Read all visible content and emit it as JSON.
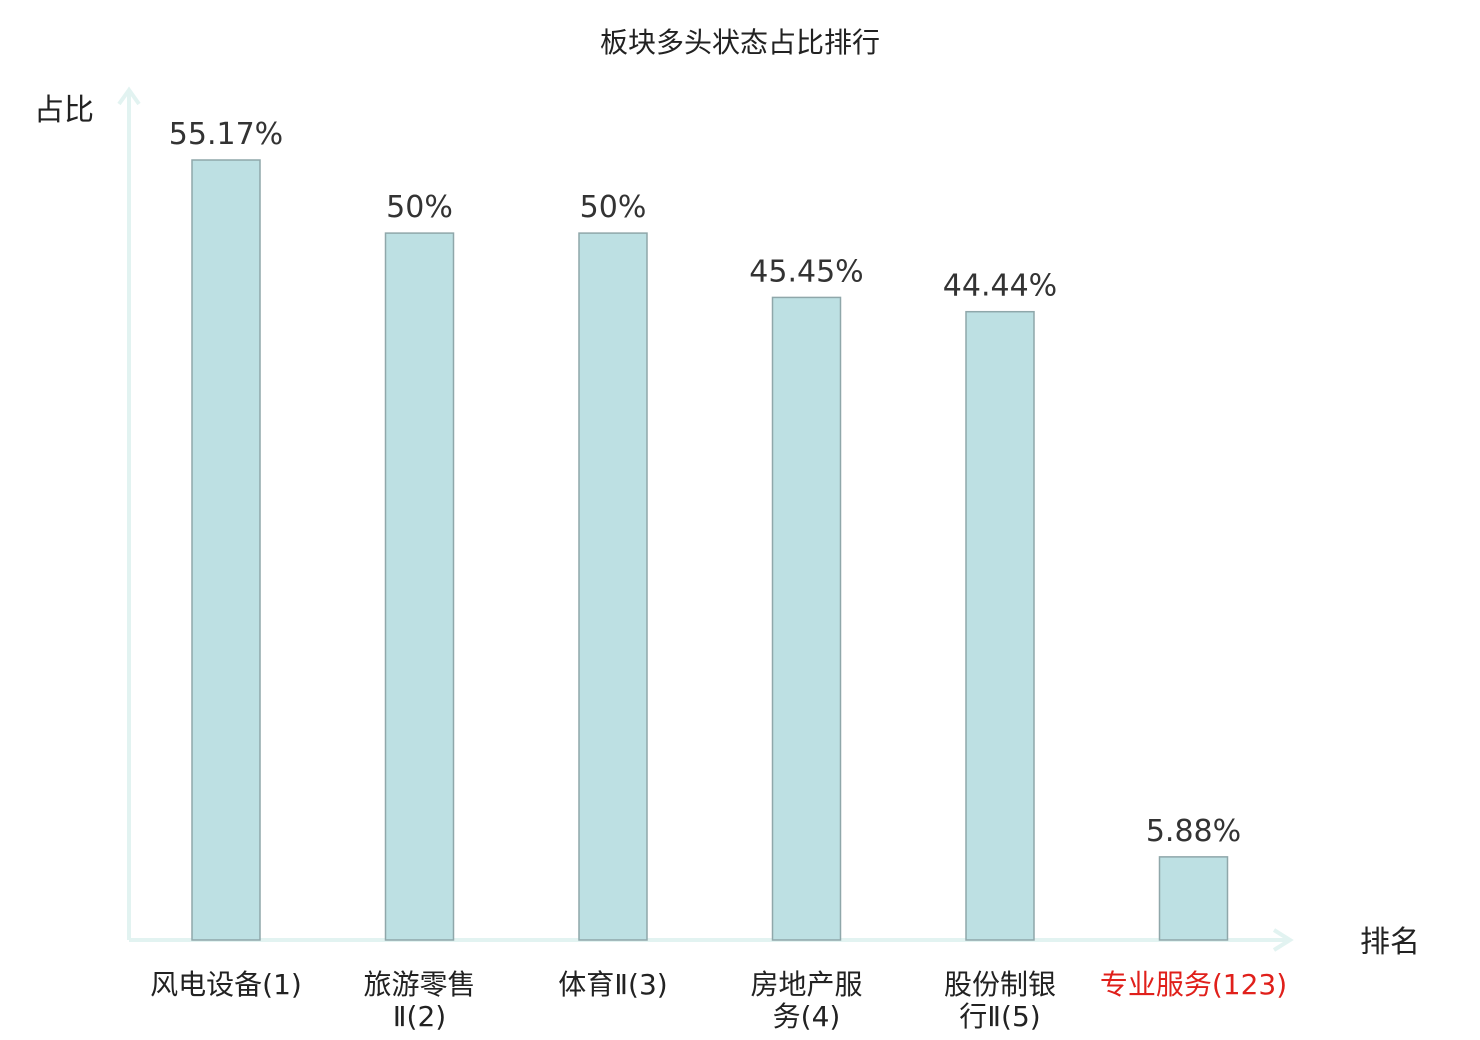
{
  "chart_data": {
    "type": "bar",
    "title": "板块多头状态占比排行",
    "ylabel": "占比",
    "xlabel": "排名",
    "ylim": [
      0,
      60
    ],
    "grid": false,
    "categories": [
      {
        "lines": [
          "风电设备(1)"
        ],
        "highlight": false
      },
      {
        "lines": [
          "旅游零售",
          "Ⅱ(2)"
        ],
        "highlight": false
      },
      {
        "lines": [
          "体育Ⅱ(3)"
        ],
        "highlight": false
      },
      {
        "lines": [
          "房地产服",
          "务(4)"
        ],
        "highlight": false
      },
      {
        "lines": [
          "股份制银",
          "行Ⅱ(5)"
        ],
        "highlight": false
      },
      {
        "lines": [
          "专业服务(123)"
        ],
        "highlight": true
      }
    ],
    "values": [
      55.17,
      50,
      50,
      45.45,
      44.44,
      5.88
    ],
    "value_labels": [
      "55.17%",
      "50%",
      "50%",
      "45.45%",
      "44.44%",
      "5.88%"
    ],
    "colors": {
      "bar": "#bde0e3",
      "bar_border": "#8fa7aa",
      "axis": "#e2f3f1",
      "highlight": "#e0201b"
    }
  }
}
